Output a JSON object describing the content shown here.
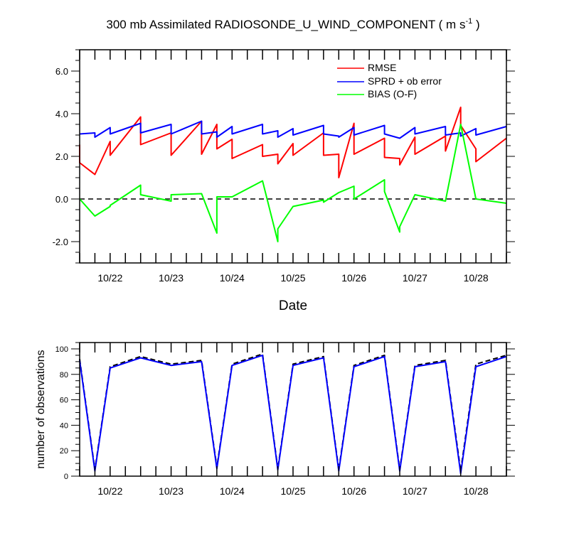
{
  "chart_data": [
    {
      "type": "line",
      "title_main": "300 mb Assimilated RADIOSONDE_U_WIND_COMPONENT ( m s",
      "title_sup": "-1",
      "title_end": " )",
      "xlabel": "Date",
      "ylabel": "",
      "xlim": [
        "10/21 12:00",
        "10/28 12:00"
      ],
      "ylim": [
        -3,
        7
      ],
      "x_ticks": [
        "10/22",
        "10/23",
        "10/24",
        "10/25",
        "10/26",
        "10/27",
        "10/28"
      ],
      "y_ticks": [
        "-2.0",
        "0.0",
        "2.0",
        "4.0",
        "6.0"
      ],
      "reference_line": {
        "y": 0,
        "style": "dashed",
        "color": "#000000"
      },
      "legend_position": "top-right",
      "series": [
        {
          "name": "RMSE",
          "color": "#ff0000",
          "points": [
            [
              "10/21 12:00",
              2.55
            ],
            [
              "10/21 12:00",
              1.7
            ],
            [
              "10/21 18:00",
              1.15
            ],
            [
              "10/22 00:00",
              2.7
            ],
            [
              "10/22 00:00",
              2.05
            ],
            [
              "10/22 12:00",
              3.85
            ],
            [
              "10/22 12:00",
              2.55
            ],
            [
              "10/23 00:00",
              3.1
            ],
            [
              "10/23 00:00",
              2.05
            ],
            [
              "10/23 12:00",
              3.65
            ],
            [
              "10/23 12:00",
              2.1
            ],
            [
              "10/23 18:00",
              3.5
            ],
            [
              "10/23 18:00",
              2.35
            ],
            [
              "10/24 00:00",
              2.8
            ],
            [
              "10/24 00:00",
              1.9
            ],
            [
              "10/24 12:00",
              2.55
            ],
            [
              "10/24 12:00",
              2.0
            ],
            [
              "10/24 18:00",
              2.1
            ],
            [
              "10/24 18:00",
              1.65
            ],
            [
              "10/25 00:00",
              2.6
            ],
            [
              "10/25 00:00",
              2.05
            ],
            [
              "10/25 12:00",
              3.1
            ],
            [
              "10/25 12:00",
              2.05
            ],
            [
              "10/25 18:00",
              2.1
            ],
            [
              "10/25 18:00",
              1.0
            ],
            [
              "10/26 00:00",
              3.55
            ],
            [
              "10/26 00:00",
              2.1
            ],
            [
              "10/26 12:00",
              2.85
            ],
            [
              "10/26 12:00",
              1.95
            ],
            [
              "10/26 18:00",
              1.9
            ],
            [
              "10/26 18:00",
              1.6
            ],
            [
              "10/27 00:00",
              2.9
            ],
            [
              "10/27 00:00",
              2.1
            ],
            [
              "10/27 12:00",
              2.95
            ],
            [
              "10/27 12:00",
              2.25
            ],
            [
              "10/27 18:00",
              4.3
            ],
            [
              "10/27 18:00",
              3.45
            ],
            [
              "10/28 00:00",
              2.35
            ],
            [
              "10/28 00:00",
              1.75
            ],
            [
              "10/28 12:00",
              2.85
            ]
          ]
        },
        {
          "name": "SPRD + ob error",
          "color": "#0000ff",
          "points": [
            [
              "10/21 12:00",
              3.05
            ],
            [
              "10/21 18:00",
              3.1
            ],
            [
              "10/21 18:00",
              2.9
            ],
            [
              "10/22 00:00",
              3.35
            ],
            [
              "10/22 00:00",
              3.05
            ],
            [
              "10/22 12:00",
              3.55
            ],
            [
              "10/22 12:00",
              3.1
            ],
            [
              "10/23 00:00",
              3.5
            ],
            [
              "10/23 00:00",
              3.05
            ],
            [
              "10/23 12:00",
              3.65
            ],
            [
              "10/23 12:00",
              3.05
            ],
            [
              "10/23 18:00",
              3.15
            ],
            [
              "10/23 18:00",
              2.9
            ],
            [
              "10/24 00:00",
              3.4
            ],
            [
              "10/24 00:00",
              3.05
            ],
            [
              "10/24 12:00",
              3.5
            ],
            [
              "10/24 12:00",
              3.05
            ],
            [
              "10/24 18:00",
              3.2
            ],
            [
              "10/24 18:00",
              2.9
            ],
            [
              "10/25 00:00",
              3.3
            ],
            [
              "10/25 00:00",
              3.0
            ],
            [
              "10/25 12:00",
              3.45
            ],
            [
              "10/25 12:00",
              3.05
            ],
            [
              "10/25 18:00",
              2.95
            ],
            [
              "10/25 18:00",
              2.9
            ],
            [
              "10/26 00:00",
              3.35
            ],
            [
              "10/26 00:00",
              3.0
            ],
            [
              "10/26 12:00",
              3.45
            ],
            [
              "10/26 12:00",
              3.05
            ],
            [
              "10/26 18:00",
              2.85
            ],
            [
              "10/26 18:00",
              2.85
            ],
            [
              "10/27 00:00",
              3.35
            ],
            [
              "10/27 00:00",
              3.05
            ],
            [
              "10/27 12:00",
              3.4
            ],
            [
              "10/27 12:00",
              3.0
            ],
            [
              "10/27 18:00",
              3.1
            ],
            [
              "10/27 18:00",
              2.95
            ],
            [
              "10/28 00:00",
              3.3
            ],
            [
              "10/28 00:00",
              3.0
            ],
            [
              "10/28 12:00",
              3.4
            ]
          ]
        },
        {
          "name": "BIAS (O-F)",
          "color": "#00ff00",
          "points": [
            [
              "10/21 12:00",
              0.0
            ],
            [
              "10/21 18:00",
              -0.8
            ],
            [
              "10/22 00:00",
              -0.35
            ],
            [
              "10/22 00:00",
              -0.3
            ],
            [
              "10/22 12:00",
              0.65
            ],
            [
              "10/22 12:00",
              0.2
            ],
            [
              "10/23 00:00",
              -0.1
            ],
            [
              "10/23 00:00",
              0.2
            ],
            [
              "10/23 12:00",
              0.25
            ],
            [
              "10/23 18:00",
              -1.6
            ],
            [
              "10/23 18:00",
              0.1
            ],
            [
              "10/24 00:00",
              0.1
            ],
            [
              "10/24 12:00",
              0.85
            ],
            [
              "10/24 18:00",
              -2.0
            ],
            [
              "10/24 18:00",
              -1.4
            ],
            [
              "10/25 00:00",
              -0.35
            ],
            [
              "10/25 12:00",
              -0.05
            ],
            [
              "10/25 12:00",
              -0.15
            ],
            [
              "10/25 18:00",
              0.3
            ],
            [
              "10/26 00:00",
              0.6
            ],
            [
              "10/26 00:00",
              0.0
            ],
            [
              "10/26 12:00",
              0.9
            ],
            [
              "10/26 12:00",
              0.35
            ],
            [
              "10/26 18:00",
              -1.55
            ],
            [
              "10/26 18:00",
              -1.3
            ],
            [
              "10/27 00:00",
              0.2
            ],
            [
              "10/27 12:00",
              -0.1
            ],
            [
              "10/27 18:00",
              3.5
            ],
            [
              "10/28 00:00",
              0.0
            ],
            [
              "10/28 12:00",
              -0.2
            ]
          ]
        }
      ]
    },
    {
      "type": "line",
      "title": "",
      "xlabel": "",
      "ylabel": "number of observations",
      "xlim": [
        "10/21 12:00",
        "10/28 12:00"
      ],
      "ylim": [
        0,
        105
      ],
      "x_ticks": [
        "10/22",
        "10/23",
        "10/24",
        "10/25",
        "10/26",
        "10/27",
        "10/28"
      ],
      "y_ticks": [
        "0",
        "20",
        "40",
        "60",
        "80",
        "100"
      ],
      "series": [
        {
          "color": "#000000",
          "style": "dashed",
          "points": [
            [
              "10/21 12:00",
              92
            ],
            [
              "10/21 18:00",
              5
            ],
            [
              "10/22 00:00",
              86
            ],
            [
              "10/22 12:00",
              94
            ],
            [
              "10/23 00:00",
              88
            ],
            [
              "10/23 12:00",
              91
            ],
            [
              "10/23 18:00",
              7
            ],
            [
              "10/24 00:00",
              88
            ],
            [
              "10/24 12:00",
              96
            ],
            [
              "10/24 18:00",
              6
            ],
            [
              "10/25 00:00",
              88
            ],
            [
              "10/25 12:00",
              94
            ],
            [
              "10/25 18:00",
              5
            ],
            [
              "10/26 00:00",
              87
            ],
            [
              "10/26 12:00",
              95
            ],
            [
              "10/26 18:00",
              5
            ],
            [
              "10/27 00:00",
              87
            ],
            [
              "10/27 12:00",
              91
            ],
            [
              "10/27 18:00",
              4
            ],
            [
              "10/28 00:00",
              88
            ],
            [
              "10/28 12:00",
              95
            ]
          ]
        },
        {
          "color": "#0000ff",
          "style": "solid",
          "points": [
            [
              "10/21 12:00",
              91
            ],
            [
              "10/21 18:00",
              4
            ],
            [
              "10/22 00:00",
              85
            ],
            [
              "10/22 12:00",
              93
            ],
            [
              "10/23 00:00",
              87
            ],
            [
              "10/23 12:00",
              90
            ],
            [
              "10/23 18:00",
              6
            ],
            [
              "10/24 00:00",
              87
            ],
            [
              "10/24 12:00",
              95
            ],
            [
              "10/24 18:00",
              5
            ],
            [
              "10/25 00:00",
              87
            ],
            [
              "10/25 12:00",
              93
            ],
            [
              "10/25 18:00",
              4
            ],
            [
              "10/26 00:00",
              86
            ],
            [
              "10/26 12:00",
              94
            ],
            [
              "10/26 18:00",
              4
            ],
            [
              "10/27 00:00",
              86
            ],
            [
              "10/27 12:00",
              90
            ],
            [
              "10/27 18:00",
              2
            ],
            [
              "10/28 00:00",
              86
            ],
            [
              "10/28 12:00",
              94
            ]
          ]
        }
      ]
    }
  ]
}
